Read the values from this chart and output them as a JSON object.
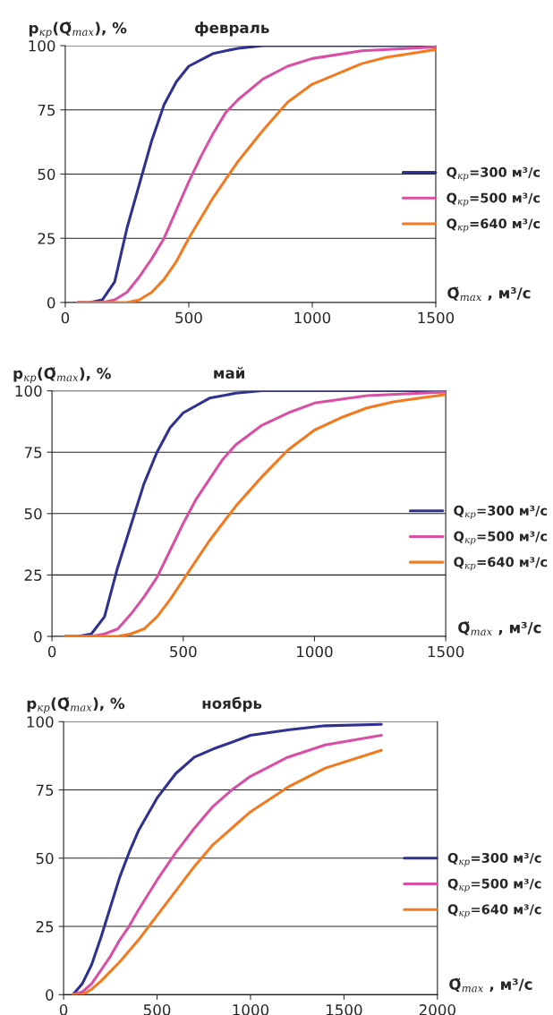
{
  "chart_data": [
    {
      "type": "line",
      "title": "февраль",
      "ylabel": "p$_{кр}$(Q̃$_{max}$), %",
      "xlabel": "Q̃$_{max}$ , м³/с",
      "xlim": [
        0,
        1500
      ],
      "xticks": [
        0,
        500,
        1000,
        1500
      ],
      "ylim": [
        0,
        100
      ],
      "yticks": [
        0,
        25,
        50,
        75,
        100
      ],
      "grid": "y",
      "legend": "right",
      "marker": "none",
      "line_style": "solid",
      "series": [
        {
          "name": "Q$_{кр}$=300 м³/с",
          "color": "#2e3192",
          "x": [
            50,
            100,
            150,
            200,
            250,
            300,
            350,
            400,
            450,
            500,
            600,
            700,
            800,
            1000,
            1500
          ],
          "values": [
            0,
            0,
            1,
            8,
            29,
            46,
            63,
            77,
            86,
            92,
            97,
            99,
            100,
            100,
            100
          ]
        },
        {
          "name": "Q$_{кр}$=500 м³/с",
          "color": "#d94fa6",
          "x": [
            50,
            150,
            200,
            250,
            300,
            350,
            400,
            450,
            500,
            550,
            600,
            650,
            700,
            800,
            900,
            1000,
            1200,
            1500
          ],
          "values": [
            0,
            0,
            1,
            4,
            10,
            17,
            25,
            36,
            47,
            57,
            66,
            74,
            79,
            87,
            92,
            95,
            98,
            99.5
          ]
        },
        {
          "name": "Q$_{кр}$=640 м³/с",
          "color": "#f47a20",
          "x": [
            50,
            250,
            300,
            350,
            400,
            450,
            500,
            550,
            600,
            650,
            700,
            800,
            900,
            1000,
            1100,
            1200,
            1300,
            1400,
            1500
          ],
          "values": [
            0,
            0,
            1,
            4,
            9,
            16,
            25,
            33,
            41,
            48,
            55,
            67,
            78,
            85,
            89,
            93,
            95.5,
            97,
            98.5
          ]
        }
      ]
    },
    {
      "type": "line",
      "title": "май",
      "ylabel": "p$_{кр}$(Q̃$_{max}$), %",
      "xlabel": "Q̃$_{max}$ , м³/с",
      "xlim": [
        0,
        1500
      ],
      "xticks": [
        0,
        500,
        1000,
        1500
      ],
      "ylim": [
        0,
        100
      ],
      "yticks": [
        0,
        25,
        50,
        75,
        100
      ],
      "grid": "y",
      "legend": "right",
      "marker": "none",
      "line_style": "solid",
      "series": [
        {
          "name": "Q$_{кр}$=300 м³/с",
          "color": "#2e3192",
          "x": [
            50,
            100,
            150,
            200,
            250,
            300,
            350,
            400,
            450,
            500,
            600,
            700,
            800,
            1000,
            1500
          ],
          "values": [
            0,
            0,
            1,
            8,
            28,
            45,
            62,
            75,
            85,
            91,
            97,
            99,
            100,
            100,
            100
          ]
        },
        {
          "name": "Q$_{кр}$=500 м³/с",
          "color": "#d94fa6",
          "x": [
            50,
            150,
            200,
            250,
            300,
            350,
            400,
            450,
            500,
            550,
            600,
            650,
            700,
            800,
            900,
            1000,
            1200,
            1500
          ],
          "values": [
            0,
            0,
            1,
            3,
            9,
            16,
            24,
            35,
            46,
            56,
            64,
            72,
            78,
            86,
            91,
            95,
            98,
            99.5
          ]
        },
        {
          "name": "Q$_{кр}$=640 м³/с",
          "color": "#f47a20",
          "x": [
            50,
            250,
            300,
            350,
            400,
            450,
            500,
            550,
            600,
            650,
            700,
            800,
            900,
            1000,
            1100,
            1200,
            1300,
            1400,
            1500
          ],
          "values": [
            0,
            0,
            1,
            3,
            8,
            15,
            23,
            31,
            39,
            46,
            53,
            65,
            76,
            84,
            89,
            93,
            95.5,
            97,
            98.5
          ]
        }
      ]
    },
    {
      "type": "line",
      "title": "ноябрь",
      "ylabel": "p$_{кр}$(Q̃$_{max}$), %",
      "xlabel": "Q̃$_{max}$ , м³/с",
      "xlim": [
        0,
        2000
      ],
      "xticks": [
        0,
        500,
        1000,
        1500,
        2000
      ],
      "ylim": [
        0,
        100
      ],
      "yticks": [
        0,
        25,
        50,
        75,
        100
      ],
      "grid": "y",
      "legend": "right",
      "marker": "none",
      "line_style": "solid",
      "series": [
        {
          "name": "Q$_{кр}$=300 м³/с",
          "color": "#2e3192",
          "x": [
            50,
            100,
            150,
            200,
            250,
            300,
            350,
            400,
            500,
            600,
            700,
            800,
            1000,
            1200,
            1400,
            1700
          ],
          "values": [
            0,
            4,
            11,
            21,
            32,
            43,
            52,
            60,
            72,
            81,
            87,
            90,
            95,
            97,
            98.5,
            99
          ]
        },
        {
          "name": "Q$_{кр}$=500 м³/с",
          "color": "#d94fa6",
          "x": [
            50,
            100,
            150,
            200,
            250,
            300,
            350,
            400,
            500,
            600,
            700,
            800,
            900,
            1000,
            1200,
            1400,
            1700
          ],
          "values": [
            0,
            1,
            4,
            9,
            14,
            20,
            25,
            31,
            42,
            52,
            61,
            69,
            75,
            80,
            87,
            91.5,
            95
          ]
        },
        {
          "name": "Q$_{кр}$=640 м³/с",
          "color": "#f47a20",
          "x": [
            50,
            100,
            150,
            200,
            300,
            400,
            500,
            600,
            700,
            800,
            900,
            1000,
            1200,
            1400,
            1700
          ],
          "values": [
            0,
            0,
            2,
            5,
            12,
            20,
            29,
            38,
            47,
            55,
            61,
            67,
            76,
            83,
            89.5
          ]
        }
      ]
    }
  ]
}
